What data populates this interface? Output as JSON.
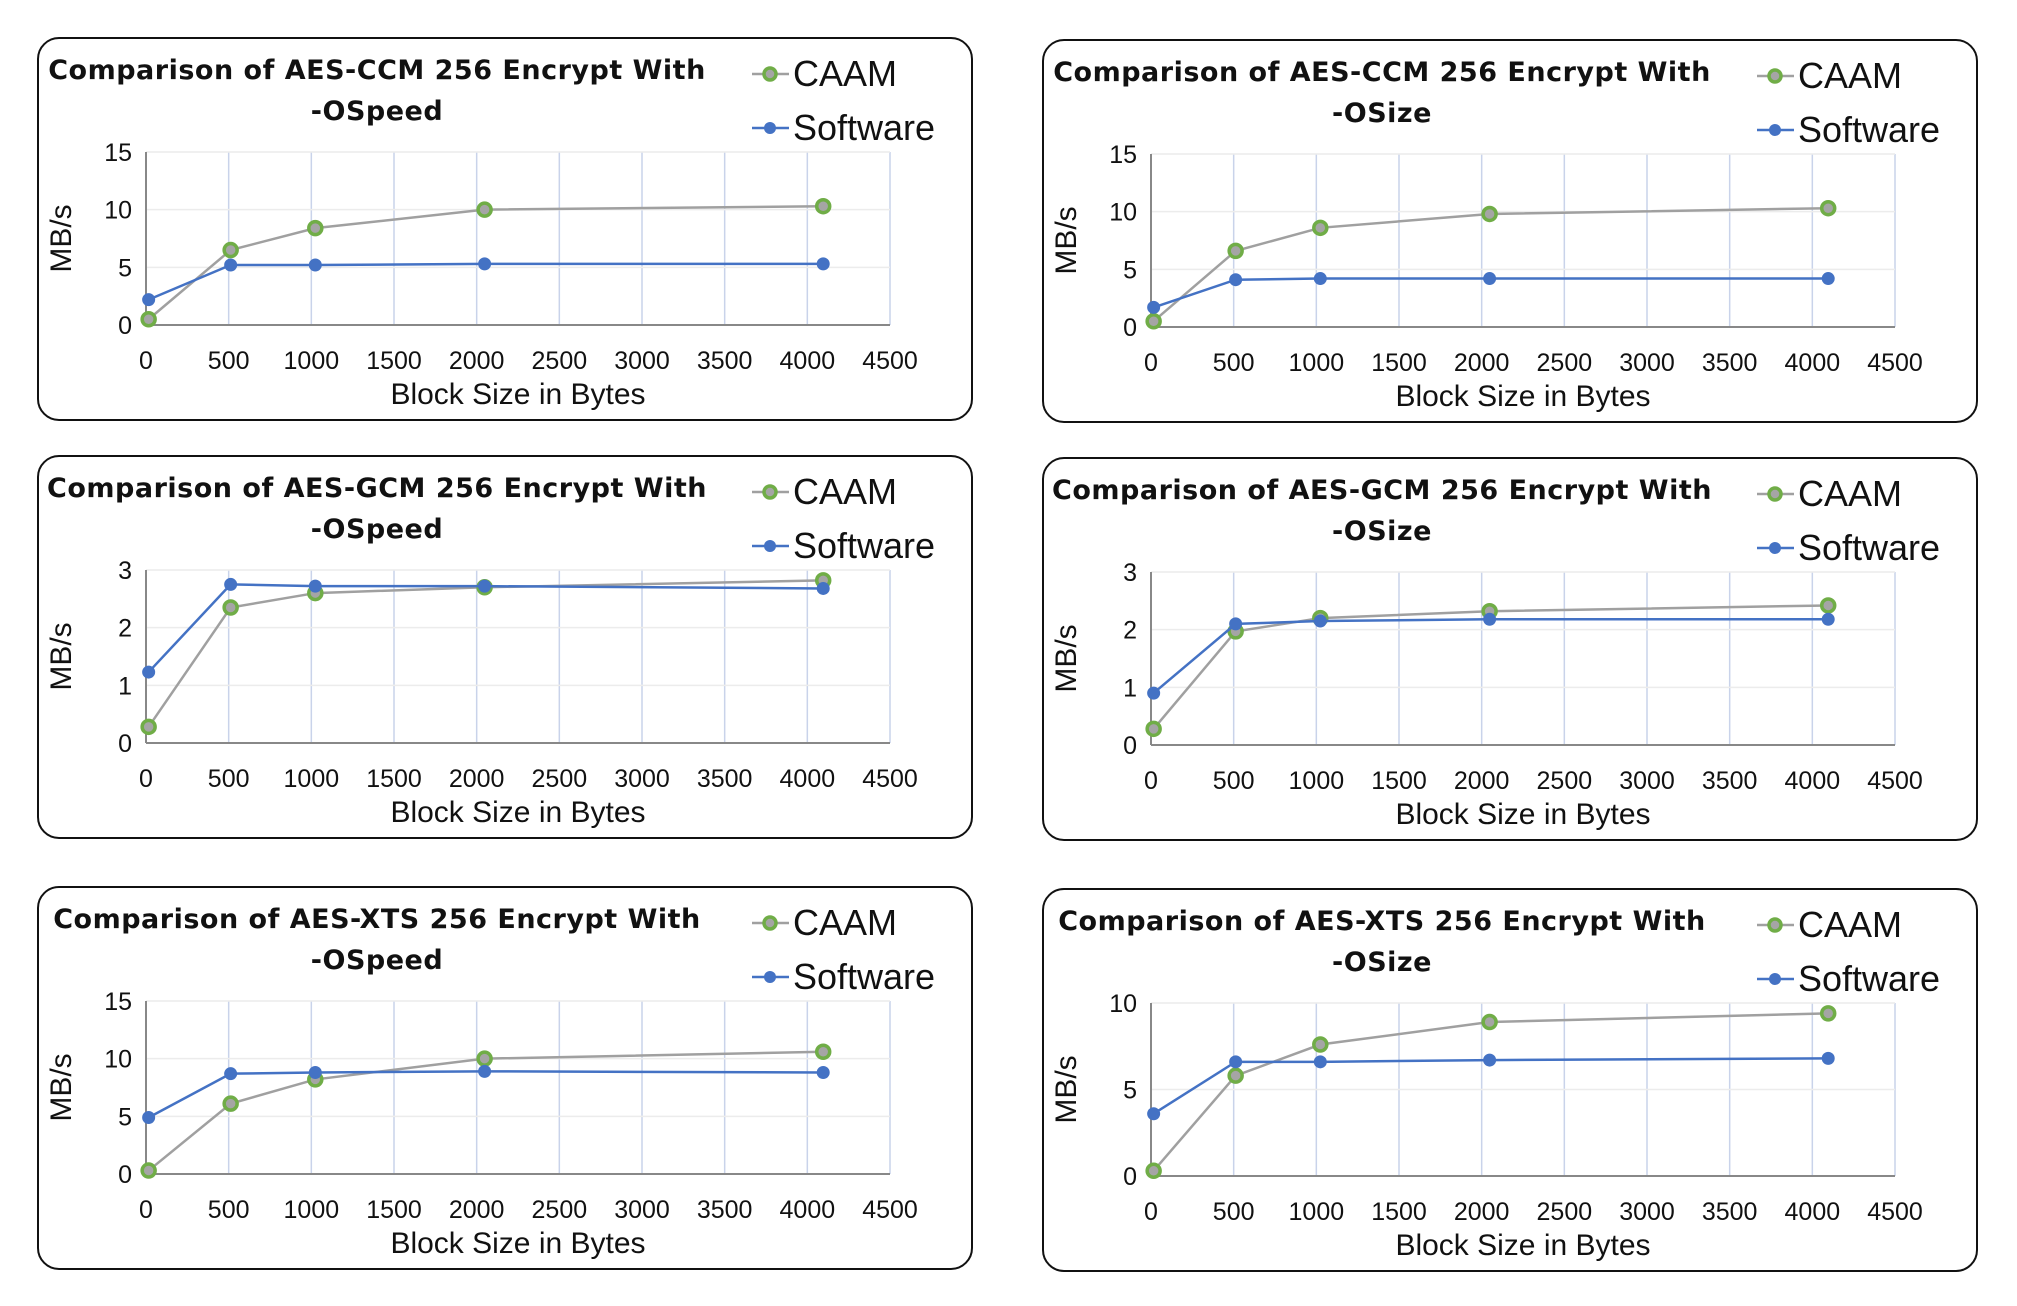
{
  "chart_data": [
    {
      "type": "line",
      "title_lines": [
        "Comparison of AES-CCM 256 Encrypt With",
        "-OSpeed"
      ],
      "xlabel": "Block Size in Bytes",
      "ylabel": "MB/s",
      "xlim": [
        0,
        4500
      ],
      "ylim": [
        0,
        15
      ],
      "xticks": [
        0,
        500,
        1000,
        1500,
        2000,
        2500,
        3000,
        3500,
        4000,
        4500
      ],
      "yticks": [
        0,
        5,
        10,
        15
      ],
      "grid": true,
      "legend": "top-right",
      "x": [
        16,
        512,
        1024,
        2048,
        4096
      ],
      "series": [
        {
          "name": "CAAM",
          "color": "#a0a0a0",
          "marker_color": "#70ad47",
          "values": [
            0.5,
            6.5,
            8.4,
            10.0,
            10.3
          ]
        },
        {
          "name": "Software",
          "color": "#4472c4",
          "marker_color": "#4472c4",
          "values": [
            2.2,
            5.2,
            5.2,
            5.3,
            5.3
          ]
        }
      ]
    },
    {
      "type": "line",
      "title_lines": [
        "Comparison of AES-CCM 256 Encrypt With",
        "-OSize"
      ],
      "xlabel": "Block Size in Bytes",
      "ylabel": "MB/s",
      "xlim": [
        0,
        4500
      ],
      "ylim": [
        0,
        15
      ],
      "xticks": [
        0,
        500,
        1000,
        1500,
        2000,
        2500,
        3000,
        3500,
        4000,
        4500
      ],
      "yticks": [
        0,
        5,
        10,
        15
      ],
      "grid": true,
      "legend": "top-right",
      "x": [
        16,
        512,
        1024,
        2048,
        4096
      ],
      "series": [
        {
          "name": "CAAM",
          "color": "#a0a0a0",
          "marker_color": "#70ad47",
          "values": [
            0.5,
            6.6,
            8.6,
            9.8,
            10.3
          ]
        },
        {
          "name": "Software",
          "color": "#4472c4",
          "marker_color": "#4472c4",
          "values": [
            1.7,
            4.1,
            4.2,
            4.2,
            4.2
          ]
        }
      ]
    },
    {
      "type": "line",
      "title_lines": [
        "Comparison of AES-GCM 256 Encrypt With",
        "-OSpeed"
      ],
      "xlabel": "Block Size in Bytes",
      "ylabel": "MB/s",
      "xlim": [
        0,
        4500
      ],
      "ylim": [
        0,
        3
      ],
      "xticks": [
        0,
        500,
        1000,
        1500,
        2000,
        2500,
        3000,
        3500,
        4000,
        4500
      ],
      "yticks": [
        0,
        1,
        2,
        3
      ],
      "grid": true,
      "legend": "top-right",
      "x": [
        16,
        512,
        1024,
        2048,
        4096
      ],
      "series": [
        {
          "name": "CAAM",
          "color": "#a0a0a0",
          "marker_color": "#70ad47",
          "values": [
            0.28,
            2.35,
            2.6,
            2.7,
            2.82
          ]
        },
        {
          "name": "Software",
          "color": "#4472c4",
          "marker_color": "#4472c4",
          "values": [
            1.23,
            2.75,
            2.72,
            2.72,
            2.68
          ]
        }
      ]
    },
    {
      "type": "line",
      "title_lines": [
        "Comparison of AES-GCM 256 Encrypt With",
        "-OSize"
      ],
      "xlabel": "Block Size in Bytes",
      "ylabel": "MB/s",
      "xlim": [
        0,
        4500
      ],
      "ylim": [
        0,
        3
      ],
      "xticks": [
        0,
        500,
        1000,
        1500,
        2000,
        2500,
        3000,
        3500,
        4000,
        4500
      ],
      "yticks": [
        0,
        1,
        2,
        3
      ],
      "grid": true,
      "legend": "top-right",
      "x": [
        16,
        512,
        1024,
        2048,
        4096
      ],
      "series": [
        {
          "name": "CAAM",
          "color": "#a0a0a0",
          "marker_color": "#70ad47",
          "values": [
            0.28,
            1.97,
            2.2,
            2.32,
            2.42
          ]
        },
        {
          "name": "Software",
          "color": "#4472c4",
          "marker_color": "#4472c4",
          "values": [
            0.9,
            2.1,
            2.15,
            2.18,
            2.18
          ]
        }
      ]
    },
    {
      "type": "line",
      "title_lines": [
        "Comparison of AES-XTS 256 Encrypt With",
        "-OSpeed"
      ],
      "xlabel": "Block Size in Bytes",
      "ylabel": "MB/s",
      "xlim": [
        0,
        4500
      ],
      "ylim": [
        0,
        15
      ],
      "xticks": [
        0,
        500,
        1000,
        1500,
        2000,
        2500,
        3000,
        3500,
        4000,
        4500
      ],
      "yticks": [
        0,
        5,
        10,
        15
      ],
      "grid": true,
      "legend": "top-right",
      "x": [
        16,
        512,
        1024,
        2048,
        4096
      ],
      "series": [
        {
          "name": "CAAM",
          "color": "#a0a0a0",
          "marker_color": "#70ad47",
          "values": [
            0.3,
            6.1,
            8.2,
            10.0,
            10.6
          ]
        },
        {
          "name": "Software",
          "color": "#4472c4",
          "marker_color": "#4472c4",
          "values": [
            4.9,
            8.7,
            8.8,
            8.9,
            8.8
          ]
        }
      ]
    },
    {
      "type": "line",
      "title_lines": [
        "Comparison of AES-XTS 256 Encrypt With",
        "-OSize"
      ],
      "xlabel": "Block Size in Bytes",
      "ylabel": "MB/s",
      "xlim": [
        0,
        4500
      ],
      "ylim": [
        0,
        10
      ],
      "xticks": [
        0,
        500,
        1000,
        1500,
        2000,
        2500,
        3000,
        3500,
        4000,
        4500
      ],
      "yticks": [
        0,
        5,
        10
      ],
      "grid": true,
      "legend": "top-right",
      "x": [
        16,
        512,
        1024,
        2048,
        4096
      ],
      "series": [
        {
          "name": "CAAM",
          "color": "#a0a0a0",
          "marker_color": "#70ad47",
          "values": [
            0.3,
            5.8,
            7.6,
            8.9,
            9.4
          ]
        },
        {
          "name": "Software",
          "color": "#4472c4",
          "marker_color": "#4472c4",
          "values": [
            3.6,
            6.6,
            6.6,
            6.7,
            6.8
          ]
        }
      ]
    }
  ]
}
